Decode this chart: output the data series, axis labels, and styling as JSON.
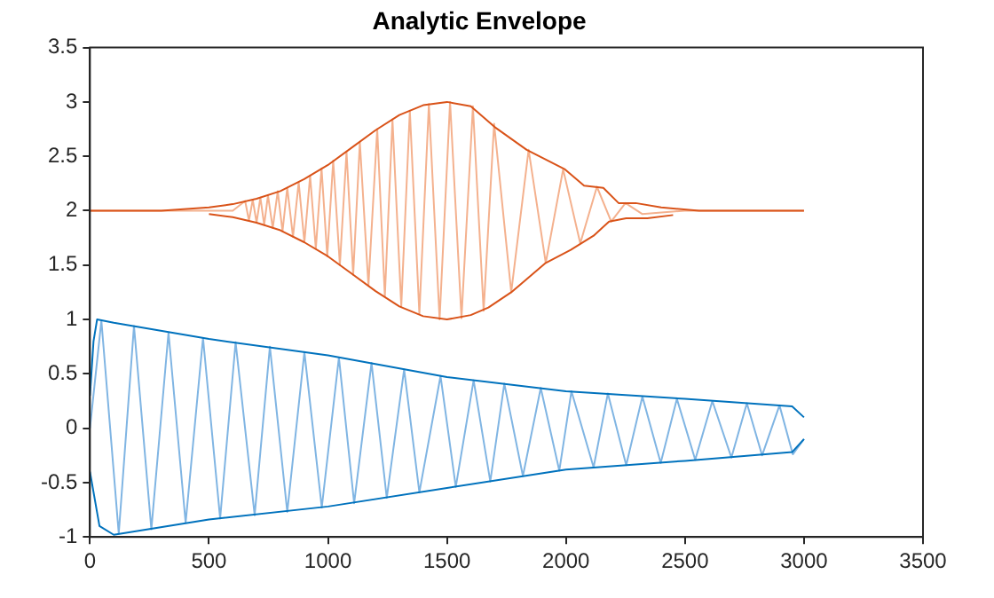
{
  "chart_data": {
    "type": "line",
    "title": "Analytic Envelope",
    "xlim": [
      0,
      3500
    ],
    "xticks": [
      0,
      500,
      1000,
      1500,
      2000,
      2500,
      3000,
      3500
    ],
    "ylim": [
      -1,
      3.5
    ],
    "yticks": [
      -1,
      -0.5,
      0,
      0.5,
      1,
      1.5,
      2,
      2.5,
      3,
      3.5
    ],
    "grid": false,
    "legend": false,
    "marker": "none",
    "line_style": "solid",
    "series": [
      {
        "color": "#80b5e3",
        "x": [
          0,
          48,
          121,
          185,
          258,
          330,
          402,
          475,
          547,
          612,
          692,
          756,
          829,
          901,
          974,
          1046,
          1110,
          1183,
          1247,
          1320,
          1384,
          1473,
          1537,
          1612,
          1682,
          1741,
          1819,
          1894,
          1972,
          2023,
          2116,
          2176,
          2253,
          2321,
          2398,
          2466,
          2543,
          2615,
          2695,
          2760,
          2824,
          2897,
          2953,
          3000
        ],
        "values": [
          0,
          0.99,
          -0.97,
          0.94,
          -0.93,
          0.88,
          -0.87,
          0.83,
          -0.83,
          0.79,
          -0.8,
          0.75,
          -0.77,
          0.7,
          -0.73,
          0.65,
          -0.69,
          0.6,
          -0.64,
          0.54,
          -0.59,
          0.48,
          -0.54,
          0.44,
          -0.49,
          0.41,
          -0.44,
          0.37,
          -0.39,
          0.34,
          -0.36,
          0.32,
          -0.34,
          0.29,
          -0.32,
          0.27,
          -0.29,
          0.25,
          -0.27,
          0.23,
          -0.25,
          0.21,
          -0.24,
          -0.1
        ]
      },
      {
        "color": "#0072bd",
        "x": [
          0,
          15,
          30,
          100,
          500,
          1000,
          1500,
          2000,
          2500,
          2950,
          3000
        ],
        "values": [
          0.3,
          0.8,
          1.0,
          0.97,
          0.82,
          0.67,
          0.47,
          0.34,
          0.27,
          0.2,
          0.1
        ]
      },
      {
        "color": "#0072bd",
        "x": [
          0,
          40,
          100,
          500,
          1000,
          1500,
          2000,
          2500,
          2950,
          3000
        ],
        "values": [
          -0.4,
          -0.9,
          -0.98,
          -0.84,
          -0.72,
          -0.55,
          -0.38,
          -0.3,
          -0.22,
          -0.1
        ]
      },
      {
        "color": "#f4b18e",
        "x": [
          0,
          600,
          652,
          668,
          684,
          700,
          716,
          732,
          748,
          768,
          789,
          809,
          829,
          853,
          877,
          901,
          925,
          949,
          973,
          997,
          1022,
          1050,
          1078,
          1106,
          1134,
          1170,
          1207,
          1239,
          1271,
          1308,
          1344,
          1384,
          1424,
          1469,
          1513,
          1561,
          1609,
          1654,
          1698,
          1770,
          1843,
          1915,
          1988,
          2060,
          2130,
          2190,
          2250,
          2320,
          2500,
          3000
        ],
        "values": [
          2,
          2,
          2.09,
          1.91,
          2.1,
          1.89,
          2.12,
          1.87,
          2.14,
          1.84,
          2.18,
          1.81,
          2.21,
          1.76,
          2.26,
          1.71,
          2.32,
          1.65,
          2.39,
          1.58,
          2.46,
          1.5,
          2.54,
          1.41,
          2.63,
          1.31,
          2.75,
          1.21,
          2.84,
          1.12,
          2.92,
          1.05,
          2.98,
          1.0,
          3.0,
          1.01,
          2.96,
          1.08,
          2.8,
          1.25,
          2.56,
          1.52,
          2.38,
          1.7,
          2.22,
          1.9,
          2.07,
          1.97,
          2,
          2
        ]
      },
      {
        "color": "#d95319",
        "x": [
          0,
          300,
          500,
          600,
          700,
          800,
          900,
          1000,
          1100,
          1200,
          1300,
          1400,
          1500,
          1600,
          1700,
          1835,
          1996,
          2076,
          2157,
          2221,
          2293,
          2400,
          2559,
          3000
        ],
        "values": [
          2,
          2,
          2.03,
          2.06,
          2.11,
          2.18,
          2.29,
          2.42,
          2.58,
          2.74,
          2.88,
          2.97,
          3.0,
          2.96,
          2.77,
          2.56,
          2.38,
          2.23,
          2.21,
          2.07,
          2.07,
          2.03,
          2,
          2
        ]
      },
      {
        "color": "#d95319",
        "x": [
          500,
          600,
          700,
          800,
          900,
          1000,
          1100,
          1200,
          1300,
          1400,
          1500,
          1600,
          1674,
          1770,
          1915,
          2020,
          2116,
          2181,
          2253,
          2342,
          2450
        ],
        "values": [
          1.97,
          1.94,
          1.89,
          1.82,
          1.71,
          1.58,
          1.42,
          1.26,
          1.12,
          1.03,
          1.0,
          1.04,
          1.11,
          1.25,
          1.52,
          1.64,
          1.77,
          1.9,
          1.93,
          1.93,
          1.96
        ]
      }
    ]
  }
}
